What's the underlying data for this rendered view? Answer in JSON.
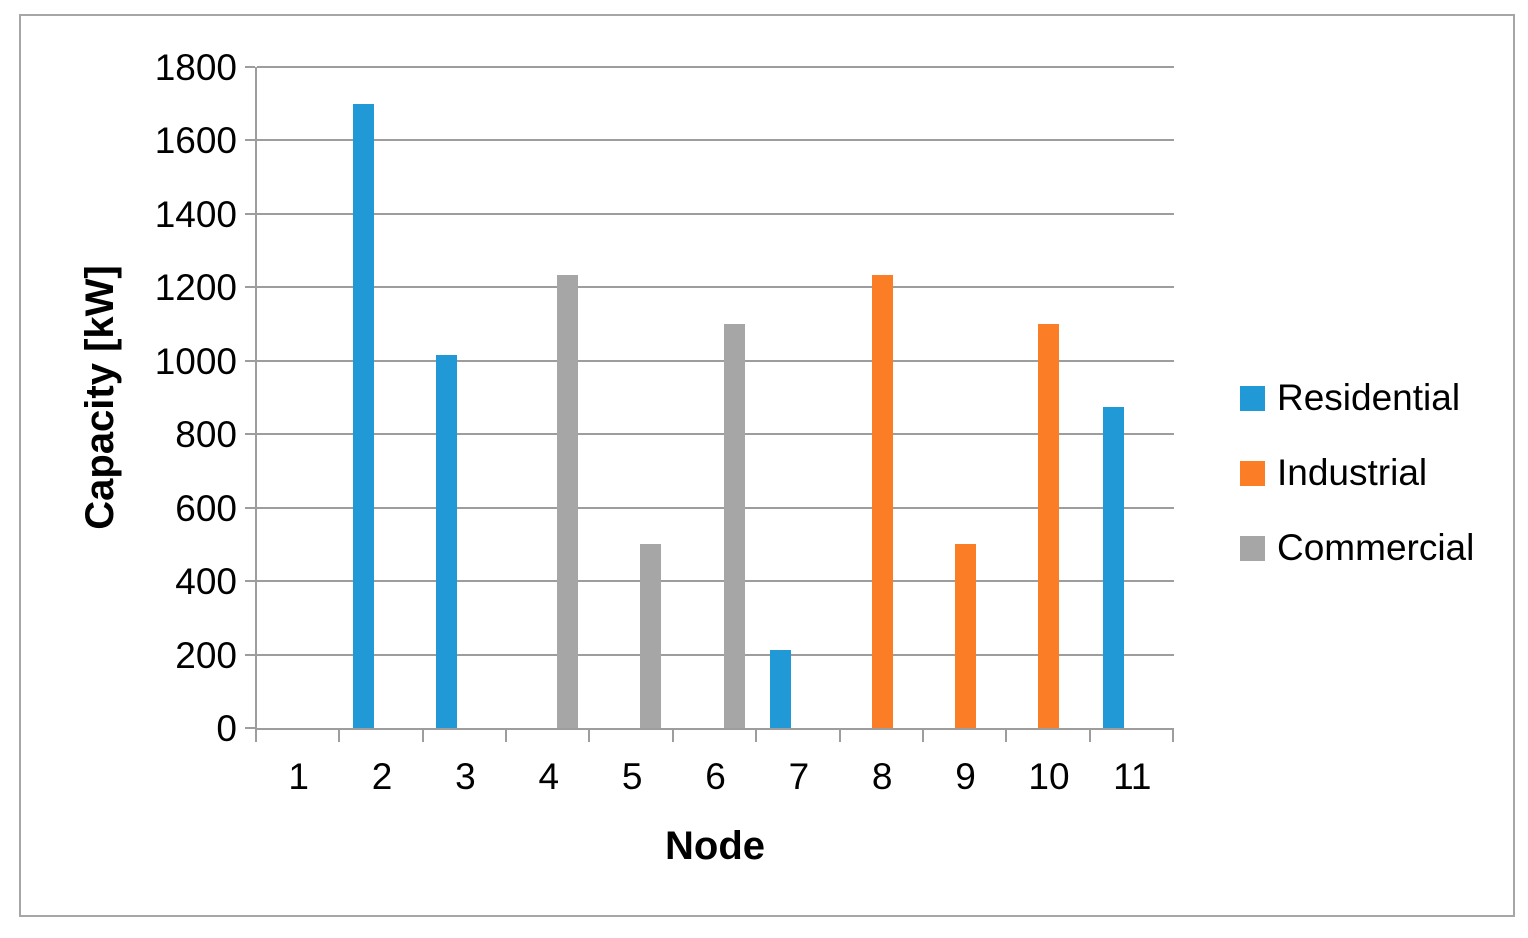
{
  "chart_data": {
    "type": "bar",
    "title": "",
    "xlabel": "Node",
    "ylabel": "Capacity [kW]",
    "categories": [
      "1",
      "2",
      "3",
      "4",
      "5",
      "6",
      "7",
      "8",
      "9",
      "10",
      "11"
    ],
    "y_ticks": [
      0,
      200,
      400,
      600,
      800,
      1000,
      1200,
      1400,
      1600,
      1800
    ],
    "ylim": [
      0,
      1800
    ],
    "grid": "horizontal",
    "legend_position": "right",
    "series": [
      {
        "name": "Residential",
        "color": "#2199D6",
        "values": [
          0,
          1700,
          1015,
          0,
          0,
          0,
          213,
          0,
          0,
          0,
          875
        ]
      },
      {
        "name": "Industrial",
        "color": "#FB7D26",
        "values": [
          0,
          0,
          0,
          0,
          0,
          0,
          0,
          1233,
          500,
          1100,
          0
        ]
      },
      {
        "name": "Commercial",
        "color": "#A6A6A6",
        "values": [
          0,
          0,
          0,
          1233,
          500,
          1100,
          0,
          0,
          0,
          0,
          0
        ]
      }
    ],
    "grid_color": "#9D9D9D",
    "axis_color": "#9D9D9D",
    "frame_border_color": "#A6A6A6",
    "text_color": "#000000",
    "background_color": "#FFFFFF"
  }
}
